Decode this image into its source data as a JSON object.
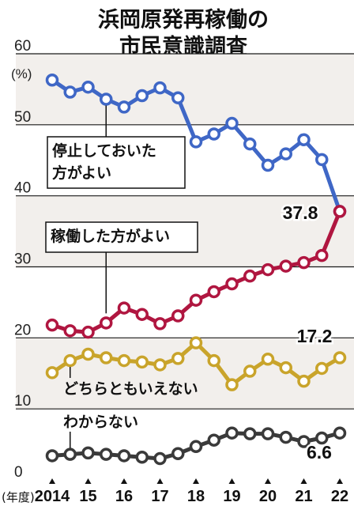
{
  "title_line1": "浜岡原発再稼働の",
  "title_line2": "市民意識調査",
  "chart_data": {
    "type": "line",
    "y_unit": "(%)",
    "x_unit": "(年度)",
    "ylim": [
      0,
      60
    ],
    "yticks": [
      0,
      10,
      20,
      30,
      40,
      50,
      60
    ],
    "x_tick_labels": [
      "2014",
      "15",
      "16",
      "17",
      "18",
      "19",
      "20",
      "21",
      "22"
    ],
    "x": [
      2014,
      2014.5,
      2015,
      2015.5,
      2016,
      2016.5,
      2017,
      2017.5,
      2018,
      2018.5,
      2019,
      2019.5,
      2020,
      2020.5,
      2021,
      2021.5,
      2022
    ],
    "grid": "shaded horizontal bands",
    "series": [
      {
        "name": "停止しておいた方がよい",
        "label_lines": [
          "停止しておいた",
          "方がよい"
        ],
        "color": "#3f67c6",
        "values": [
          56.3,
          54.6,
          55.3,
          53.6,
          52.5,
          54.1,
          55.2,
          53.8,
          47.6,
          48.7,
          50.2,
          47.3,
          44.3,
          45.9,
          47.9,
          45.1,
          37.8
        ]
      },
      {
        "name": "稼働した方がよい",
        "label_lines": [
          "稼働した方がよい"
        ],
        "color": "#b01640",
        "end_label": "37.8",
        "values": [
          21.8,
          21.0,
          20.8,
          22.1,
          24.2,
          23.3,
          22.0,
          23.1,
          25.3,
          26.5,
          27.6,
          28.7,
          29.6,
          30.1,
          30.6,
          31.6,
          37.8
        ]
      },
      {
        "name": "どちらともいえない",
        "label_lines": [
          "どちらともいえない"
        ],
        "color": "#c9a42b",
        "end_label": "17.2",
        "values": [
          15.1,
          16.8,
          17.7,
          17.2,
          16.8,
          16.6,
          16.2,
          17.1,
          19.3,
          16.8,
          13.4,
          15.3,
          17.0,
          15.8,
          13.9,
          15.7,
          17.2
        ]
      },
      {
        "name": "わからない",
        "label_lines": [
          "わからない"
        ],
        "color": "#3a3a3a",
        "end_label": "6.6",
        "values": [
          3.4,
          3.6,
          3.8,
          3.6,
          3.4,
          3.2,
          3.0,
          3.7,
          4.7,
          5.6,
          6.6,
          6.5,
          6.5,
          6.0,
          5.4,
          5.9,
          6.6
        ]
      }
    ]
  }
}
